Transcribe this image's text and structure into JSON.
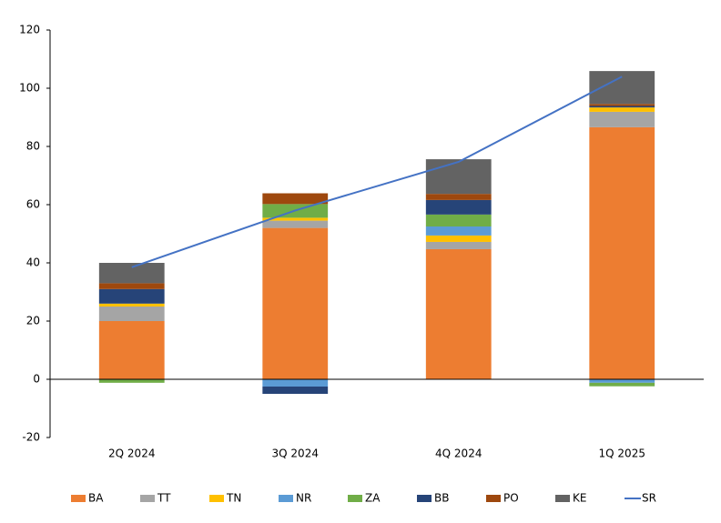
{
  "chart_data": {
    "type": "bar",
    "stacked": true,
    "categories": [
      "2Q 2024",
      "3Q 2024",
      "4Q 2024",
      "1Q 2025"
    ],
    "ylim": [
      -20,
      120
    ],
    "yticks": [
      -20,
      0,
      20,
      40,
      60,
      80,
      100,
      120
    ],
    "series": [
      {
        "name": "BA",
        "color": "#ed7d31",
        "values": [
          20,
          52,
          44.7,
          86.6
        ]
      },
      {
        "name": "TT",
        "color": "#a5a5a5",
        "values": [
          5,
          2.5,
          2.5,
          5.3
        ]
      },
      {
        "name": "TN",
        "color": "#ffc000",
        "values": [
          1,
          1,
          2.2,
          1.5
        ]
      },
      {
        "name": "NR",
        "color": "#5b9bd5",
        "values": [
          0,
          -2.5,
          3.1,
          -1.2
        ]
      },
      {
        "name": "ZA",
        "color": "#70ad47",
        "values": [
          -1.2,
          4.7,
          4.1,
          -1.2
        ]
      },
      {
        "name": "BB",
        "color": "#264478",
        "values": [
          5,
          -2.5,
          5,
          0.5
        ]
      },
      {
        "name": "PO",
        "color": "#9e480e",
        "values": [
          2,
          3.7,
          2.1,
          0.7
        ]
      },
      {
        "name": "KE",
        "color": "#636363",
        "values": [
          7,
          0,
          11.9,
          11.3
        ]
      },
      {
        "name": "SR",
        "color": "#4472c4",
        "type": "line",
        "values": [
          38.5,
          58,
          74.7,
          104
        ]
      }
    ]
  }
}
